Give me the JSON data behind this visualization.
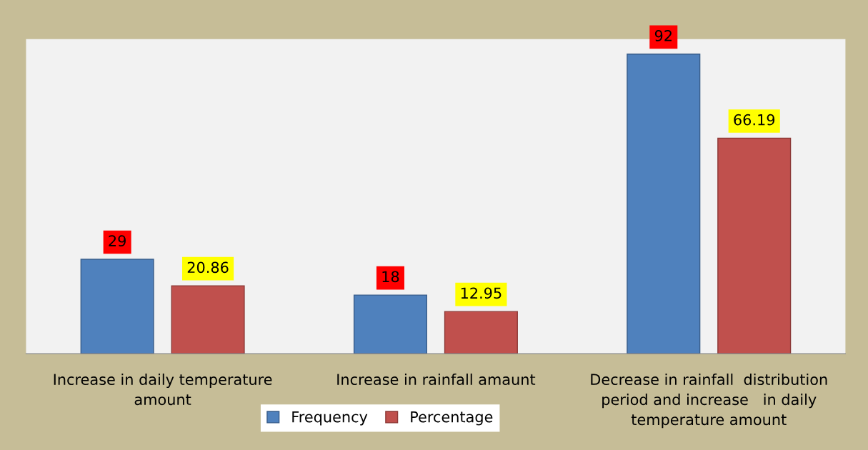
{
  "chart_data": {
    "type": "bar",
    "categories": [
      "Increase in daily temperature\namount",
      "Increase in rainfall amaunt",
      "Decrease in rainfall  distribution\nperiod and increase   in daily\ntemperature amount"
    ],
    "series": [
      {
        "name": "Frequency",
        "color": "#4f81bd",
        "values": [
          29,
          18,
          92
        ]
      },
      {
        "name": "Percentage",
        "color": "#c0504d",
        "values": [
          20.86,
          12.95,
          66.19
        ]
      }
    ],
    "data_labels": true,
    "legend": "bottom",
    "grid": false
  }
}
